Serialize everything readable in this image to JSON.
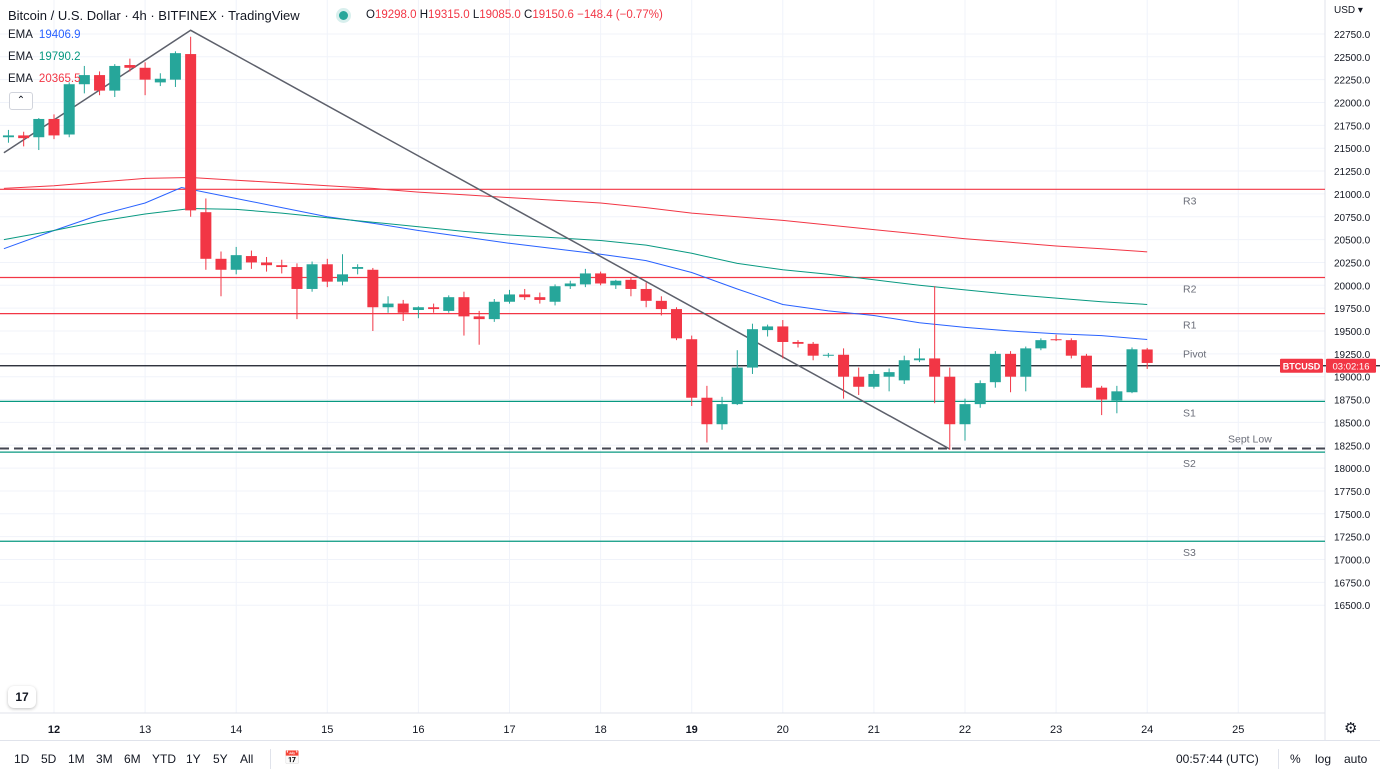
{
  "header": {
    "title": "Bitcoin / U.S. Dollar · 4h · BITFINEX · TradingView",
    "ohlc": {
      "o_label": "O",
      "o": "19298.0",
      "h_label": "H",
      "h": "19315.0",
      "l_label": "L",
      "l": "19085.0",
      "c_label": "C",
      "c": "19150.6",
      "change": "−148.4 (−0.77%)"
    },
    "currency": "USD"
  },
  "indicators": [
    {
      "name": "EMA",
      "value": "19406.9",
      "color": "#2962ff"
    },
    {
      "name": "EMA",
      "value": "19790.2",
      "color": "#089981"
    },
    {
      "name": "EMA",
      "value": "20365.5",
      "color": "#f23645"
    }
  ],
  "collapse_icon": "chevron-up-icon",
  "logo_text": "17",
  "chart_data": {
    "type": "candlestick",
    "title": "Bitcoin / U.S. Dollar",
    "interval": "4h",
    "ylim": [
      16500,
      22900
    ],
    "x_range": [
      11.45,
      25.94
    ],
    "y_ticks": [
      "16500.0",
      "16750.0",
      "17000.0",
      "17250.0",
      "17500.0",
      "17750.0",
      "18000.0",
      "18250.0",
      "18500.0",
      "18750.0",
      "19000.0",
      "19250.0",
      "19500.0",
      "19750.0",
      "20000.0",
      "20250.0",
      "20500.0",
      "20750.0",
      "21000.0",
      "21250.0",
      "21500.0",
      "21750.0",
      "22000.0",
      "22250.0",
      "22500.0",
      "22750.0"
    ],
    "x_ticks": [
      {
        "label": "12",
        "x": 12,
        "bold": true
      },
      {
        "label": "13",
        "x": 13
      },
      {
        "label": "14",
        "x": 14
      },
      {
        "label": "15",
        "x": 15
      },
      {
        "label": "16",
        "x": 16
      },
      {
        "label": "17",
        "x": 17
      },
      {
        "label": "18",
        "x": 18
      },
      {
        "label": "19",
        "x": 19,
        "bold": true
      },
      {
        "label": "20",
        "x": 20
      },
      {
        "label": "21",
        "x": 21
      },
      {
        "label": "22",
        "x": 22
      },
      {
        "label": "23",
        "x": 23
      },
      {
        "label": "24",
        "x": 24
      },
      {
        "label": "25",
        "x": 25
      }
    ],
    "candles": [
      {
        "t": 11.5,
        "o": 21620,
        "h": 21700,
        "l": 21560,
        "c": 21640
      },
      {
        "t": 11.667,
        "o": 21640,
        "h": 21680,
        "l": 21520,
        "c": 21610
      },
      {
        "t": 11.833,
        "o": 21620,
        "h": 21830,
        "l": 21480,
        "c": 21820
      },
      {
        "t": 12.0,
        "o": 21820,
        "h": 21870,
        "l": 21600,
        "c": 21640
      },
      {
        "t": 12.167,
        "o": 21650,
        "h": 22220,
        "l": 21620,
        "c": 22200
      },
      {
        "t": 12.333,
        "o": 22200,
        "h": 22400,
        "l": 22100,
        "c": 22300
      },
      {
        "t": 12.5,
        "o": 22300,
        "h": 22340,
        "l": 22080,
        "c": 22130
      },
      {
        "t": 12.667,
        "o": 22130,
        "h": 22420,
        "l": 22060,
        "c": 22400
      },
      {
        "t": 12.833,
        "o": 22410,
        "h": 22480,
        "l": 22340,
        "c": 22380
      },
      {
        "t": 13.0,
        "o": 22380,
        "h": 22440,
        "l": 22080,
        "c": 22250
      },
      {
        "t": 13.167,
        "o": 22220,
        "h": 22320,
        "l": 22180,
        "c": 22260
      },
      {
        "t": 13.333,
        "o": 22250,
        "h": 22560,
        "l": 22170,
        "c": 22540
      },
      {
        "t": 13.5,
        "o": 22530,
        "h": 22720,
        "l": 20750,
        "c": 20820
      },
      {
        "t": 13.667,
        "o": 20800,
        "h": 20950,
        "l": 20170,
        "c": 20290
      },
      {
        "t": 13.833,
        "o": 20290,
        "h": 20370,
        "l": 19880,
        "c": 20170
      },
      {
        "t": 14.0,
        "o": 20170,
        "h": 20420,
        "l": 20120,
        "c": 20330
      },
      {
        "t": 14.167,
        "o": 20320,
        "h": 20380,
        "l": 20180,
        "c": 20250
      },
      {
        "t": 14.333,
        "o": 20250,
        "h": 20310,
        "l": 20150,
        "c": 20220
      },
      {
        "t": 14.5,
        "o": 20220,
        "h": 20280,
        "l": 20130,
        "c": 20200
      },
      {
        "t": 14.667,
        "o": 20200,
        "h": 20240,
        "l": 19630,
        "c": 19960
      },
      {
        "t": 14.833,
        "o": 19960,
        "h": 20260,
        "l": 19930,
        "c": 20230
      },
      {
        "t": 15.0,
        "o": 20230,
        "h": 20290,
        "l": 19980,
        "c": 20040
      },
      {
        "t": 15.167,
        "o": 20040,
        "h": 20340,
        "l": 20000,
        "c": 20120
      },
      {
        "t": 15.333,
        "o": 20180,
        "h": 20230,
        "l": 20120,
        "c": 20200
      },
      {
        "t": 15.5,
        "o": 20170,
        "h": 20190,
        "l": 19500,
        "c": 19760
      },
      {
        "t": 15.667,
        "o": 19760,
        "h": 19880,
        "l": 19700,
        "c": 19800
      },
      {
        "t": 15.833,
        "o": 19800,
        "h": 19840,
        "l": 19610,
        "c": 19700
      },
      {
        "t": 16.0,
        "o": 19730,
        "h": 19770,
        "l": 19640,
        "c": 19760
      },
      {
        "t": 16.167,
        "o": 19760,
        "h": 19800,
        "l": 19700,
        "c": 19740
      },
      {
        "t": 16.333,
        "o": 19720,
        "h": 19890,
        "l": 19700,
        "c": 19870
      },
      {
        "t": 16.5,
        "o": 19870,
        "h": 19930,
        "l": 19450,
        "c": 19660
      },
      {
        "t": 16.667,
        "o": 19660,
        "h": 19720,
        "l": 19350,
        "c": 19630
      },
      {
        "t": 16.833,
        "o": 19630,
        "h": 19850,
        "l": 19600,
        "c": 19820
      },
      {
        "t": 17.0,
        "o": 19820,
        "h": 19950,
        "l": 19800,
        "c": 19900
      },
      {
        "t": 17.167,
        "o": 19900,
        "h": 19960,
        "l": 19840,
        "c": 19870
      },
      {
        "t": 17.333,
        "o": 19870,
        "h": 19920,
        "l": 19800,
        "c": 19840
      },
      {
        "t": 17.5,
        "o": 19820,
        "h": 20010,
        "l": 19780,
        "c": 19990
      },
      {
        "t": 17.667,
        "o": 19990,
        "h": 20050,
        "l": 19960,
        "c": 20020
      },
      {
        "t": 17.833,
        "o": 20010,
        "h": 20180,
        "l": 19980,
        "c": 20130
      },
      {
        "t": 18.0,
        "o": 20130,
        "h": 20150,
        "l": 20000,
        "c": 20020
      },
      {
        "t": 18.167,
        "o": 20000,
        "h": 20060,
        "l": 19960,
        "c": 20050
      },
      {
        "t": 18.333,
        "o": 20060,
        "h": 20090,
        "l": 19880,
        "c": 19960
      },
      {
        "t": 18.5,
        "o": 19960,
        "h": 20030,
        "l": 19760,
        "c": 19830
      },
      {
        "t": 18.667,
        "o": 19830,
        "h": 19880,
        "l": 19670,
        "c": 19740
      },
      {
        "t": 18.833,
        "o": 19740,
        "h": 19760,
        "l": 19400,
        "c": 19420
      },
      {
        "t": 19.0,
        "o": 19410,
        "h": 19450,
        "l": 18680,
        "c": 18770
      },
      {
        "t": 19.167,
        "o": 18770,
        "h": 18900,
        "l": 18280,
        "c": 18480
      },
      {
        "t": 19.333,
        "o": 18480,
        "h": 18780,
        "l": 18420,
        "c": 18700
      },
      {
        "t": 19.5,
        "o": 18700,
        "h": 19290,
        "l": 18690,
        "c": 19100
      },
      {
        "t": 19.667,
        "o": 19100,
        "h": 19580,
        "l": 19030,
        "c": 19520
      },
      {
        "t": 19.833,
        "o": 19510,
        "h": 19570,
        "l": 19440,
        "c": 19550
      },
      {
        "t": 20.0,
        "o": 19550,
        "h": 19620,
        "l": 19200,
        "c": 19380
      },
      {
        "t": 20.167,
        "o": 19380,
        "h": 19400,
        "l": 19320,
        "c": 19360
      },
      {
        "t": 20.333,
        "o": 19360,
        "h": 19380,
        "l": 19180,
        "c": 19230
      },
      {
        "t": 20.5,
        "o": 19230,
        "h": 19260,
        "l": 19210,
        "c": 19240
      },
      {
        "t": 20.667,
        "o": 19240,
        "h": 19310,
        "l": 18760,
        "c": 19000
      },
      {
        "t": 20.833,
        "o": 19000,
        "h": 19100,
        "l": 18800,
        "c": 18890
      },
      {
        "t": 21.0,
        "o": 18890,
        "h": 19070,
        "l": 18870,
        "c": 19030
      },
      {
        "t": 21.167,
        "o": 19000,
        "h": 19090,
        "l": 18840,
        "c": 19050
      },
      {
        "t": 21.333,
        "o": 18960,
        "h": 19230,
        "l": 18920,
        "c": 19180
      },
      {
        "t": 21.5,
        "o": 19180,
        "h": 19310,
        "l": 19160,
        "c": 19200
      },
      {
        "t": 21.667,
        "o": 19200,
        "h": 19990,
        "l": 18710,
        "c": 19000
      },
      {
        "t": 21.833,
        "o": 19000,
        "h": 19100,
        "l": 18200,
        "c": 18480
      },
      {
        "t": 22.0,
        "o": 18480,
        "h": 18760,
        "l": 18300,
        "c": 18700
      },
      {
        "t": 22.167,
        "o": 18700,
        "h": 18960,
        "l": 18660,
        "c": 18930
      },
      {
        "t": 22.333,
        "o": 18940,
        "h": 19280,
        "l": 18880,
        "c": 19250
      },
      {
        "t": 22.5,
        "o": 19250,
        "h": 19280,
        "l": 18830,
        "c": 19000
      },
      {
        "t": 22.667,
        "o": 19000,
        "h": 19330,
        "l": 18840,
        "c": 19310
      },
      {
        "t": 22.833,
        "o": 19310,
        "h": 19420,
        "l": 19290,
        "c": 19400
      },
      {
        "t": 23.0,
        "o": 19410,
        "h": 19460,
        "l": 19390,
        "c": 19400
      },
      {
        "t": 23.167,
        "o": 19400,
        "h": 19420,
        "l": 19200,
        "c": 19230
      },
      {
        "t": 23.333,
        "o": 19230,
        "h": 19250,
        "l": 18880,
        "c": 18880
      },
      {
        "t": 23.5,
        "o": 18880,
        "h": 18900,
        "l": 18580,
        "c": 18750
      },
      {
        "t": 23.667,
        "o": 18740,
        "h": 18900,
        "l": 18600,
        "c": 18840
      },
      {
        "t": 23.833,
        "o": 18830,
        "h": 19320,
        "l": 18820,
        "c": 19300
      },
      {
        "t": 24.0,
        "o": 19298,
        "h": 19315,
        "l": 19085,
        "c": 19150.6
      }
    ],
    "ema_series": [
      {
        "name": "EMA",
        "color": "#2962ff",
        "points": [
          [
            11.45,
            20400
          ],
          [
            12.0,
            20600
          ],
          [
            12.5,
            20770
          ],
          [
            13.0,
            20900
          ],
          [
            13.4,
            21070
          ],
          [
            14.0,
            20950
          ],
          [
            14.5,
            20850
          ],
          [
            15.0,
            20750
          ],
          [
            15.5,
            20680
          ],
          [
            16.0,
            20600
          ],
          [
            16.5,
            20530
          ],
          [
            17.0,
            20460
          ],
          [
            17.5,
            20400
          ],
          [
            18.0,
            20340
          ],
          [
            18.5,
            20270
          ],
          [
            19.0,
            20140
          ],
          [
            19.5,
            19960
          ],
          [
            20.0,
            19790
          ],
          [
            20.5,
            19720
          ],
          [
            21.0,
            19670
          ],
          [
            21.5,
            19590
          ],
          [
            22.0,
            19540
          ],
          [
            22.5,
            19500
          ],
          [
            23.0,
            19470
          ],
          [
            23.5,
            19450
          ],
          [
            24.0,
            19407
          ]
        ]
      },
      {
        "name": "EMA",
        "color": "#089981",
        "points": [
          [
            11.45,
            20500
          ],
          [
            12.0,
            20600
          ],
          [
            12.5,
            20700
          ],
          [
            13.0,
            20780
          ],
          [
            13.5,
            20840
          ],
          [
            14.0,
            20830
          ],
          [
            14.5,
            20790
          ],
          [
            15.0,
            20740
          ],
          [
            15.5,
            20690
          ],
          [
            16.0,
            20640
          ],
          [
            16.5,
            20590
          ],
          [
            17.0,
            20550
          ],
          [
            17.5,
            20520
          ],
          [
            18.0,
            20490
          ],
          [
            18.5,
            20440
          ],
          [
            19.0,
            20350
          ],
          [
            19.5,
            20240
          ],
          [
            20.0,
            20170
          ],
          [
            20.5,
            20120
          ],
          [
            21.0,
            20060
          ],
          [
            21.5,
            20000
          ],
          [
            22.0,
            19950
          ],
          [
            22.5,
            19900
          ],
          [
            23.0,
            19860
          ],
          [
            23.5,
            19820
          ],
          [
            24.0,
            19790
          ]
        ]
      },
      {
        "name": "EMA",
        "color": "#f23645",
        "points": [
          [
            11.45,
            21060
          ],
          [
            12.0,
            21090
          ],
          [
            12.5,
            21130
          ],
          [
            13.0,
            21170
          ],
          [
            13.5,
            21180
          ],
          [
            14.0,
            21150
          ],
          [
            14.5,
            21120
          ],
          [
            15.0,
            21090
          ],
          [
            15.5,
            21060
          ],
          [
            16.0,
            21020
          ],
          [
            16.5,
            20990
          ],
          [
            17.0,
            20960
          ],
          [
            17.5,
            20930
          ],
          [
            18.0,
            20900
          ],
          [
            18.5,
            20850
          ],
          [
            19.0,
            20790
          ],
          [
            19.5,
            20750
          ],
          [
            20.0,
            20710
          ],
          [
            20.5,
            20660
          ],
          [
            21.0,
            20610
          ],
          [
            21.5,
            20560
          ],
          [
            22.0,
            20510
          ],
          [
            22.5,
            20470
          ],
          [
            23.0,
            20430
          ],
          [
            23.5,
            20400
          ],
          [
            24.0,
            20366
          ]
        ]
      }
    ],
    "levels": [
      {
        "label": "R3",
        "value": 21050,
        "color": "#f23645"
      },
      {
        "label": "R2",
        "value": 20085,
        "color": "#f23645"
      },
      {
        "label": "R1",
        "value": 19690,
        "color": "#f23645"
      },
      {
        "label": "Pivot",
        "value": 19120,
        "color": "#131722"
      },
      {
        "label": "S1",
        "value": 18730,
        "color": "#089981"
      },
      {
        "label": "S2",
        "value": 18175,
        "color": "#089981"
      },
      {
        "label": "S3",
        "value": 17200,
        "color": "#089981"
      }
    ],
    "sept_low": {
      "label": "Sept Low",
      "value": 18215
    },
    "trendline": {
      "from": [
        11.45,
        21450
      ],
      "to": [
        21.83,
        18210
      ],
      "peak": [
        13.5,
        22790
      ]
    },
    "price_tag": {
      "symbol": "BTCUSD",
      "countdown": "03:02:16",
      "color": "#f23645"
    },
    "grid": true
  },
  "bottom_bar": {
    "timeframes": [
      "1D",
      "5D",
      "1M",
      "3M",
      "6M",
      "YTD",
      "1Y",
      "5Y",
      "All"
    ],
    "calendar_icon": "calendar-icon",
    "clock": "00:57:44 (UTC)",
    "percent": "%",
    "log": "log",
    "auto": "auto"
  },
  "settings_icon": "gear-icon",
  "colors": {
    "up": "#26a69a",
    "down": "#f23645",
    "grid": "#f0f3fa"
  }
}
